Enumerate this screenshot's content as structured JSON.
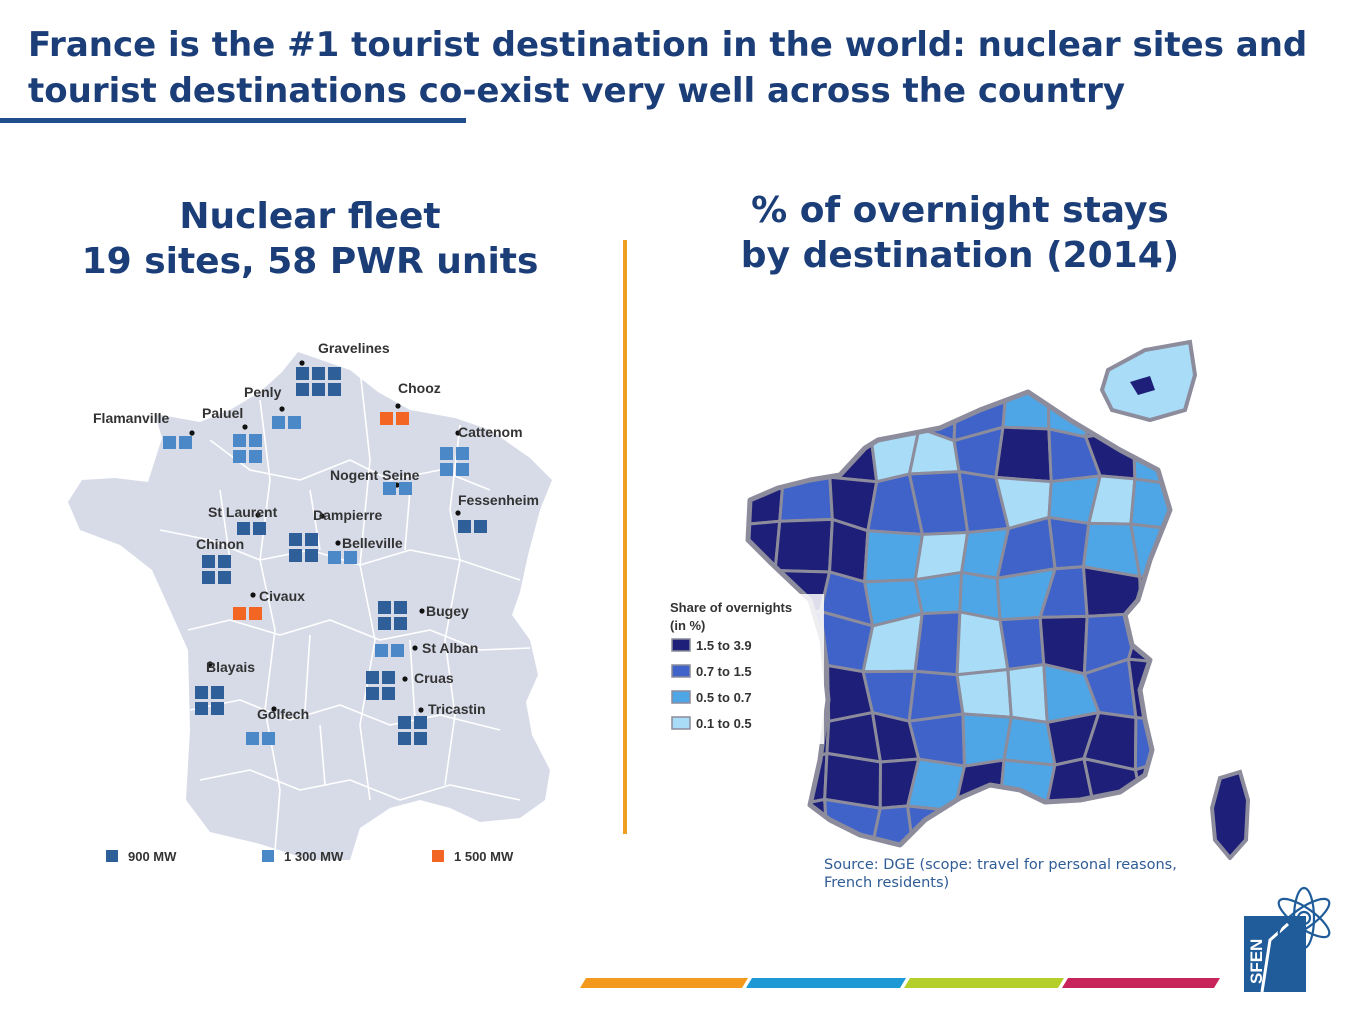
{
  "slide": {
    "title_line1": "France is the #1 tourist destination in the world: nuclear sites and",
    "title_line2": "tourist destinations co-exist very well across the country"
  },
  "left_panel": {
    "heading_line1": "Nuclear fleet",
    "heading_line2": "19 sites,  58 PWR units",
    "sites": [
      {
        "name": "Gravelines",
        "units": 6,
        "type": "900 MW"
      },
      {
        "name": "Penly",
        "units": 2,
        "type": "1 300 MW"
      },
      {
        "name": "Chooz",
        "units": 2,
        "type": "1 500 MW"
      },
      {
        "name": "Flamanville",
        "units": 2,
        "type": "1 300 MW"
      },
      {
        "name": "Paluel",
        "units": 4,
        "type": "1 300 MW"
      },
      {
        "name": "Cattenom",
        "units": 4,
        "type": "1 300 MW"
      },
      {
        "name": "Nogent Seine",
        "units": 2,
        "type": "1 300 MW"
      },
      {
        "name": "Fessenheim",
        "units": 2,
        "type": "900 MW"
      },
      {
        "name": "St Laurent",
        "units": 2,
        "type": "900 MW"
      },
      {
        "name": "Dampierre",
        "units": 4,
        "type": "900 MW"
      },
      {
        "name": "Belleville",
        "units": 2,
        "type": "1 300 MW"
      },
      {
        "name": "Chinon",
        "units": 4,
        "type": "900 MW"
      },
      {
        "name": "Civaux",
        "units": 2,
        "type": "1 500 MW"
      },
      {
        "name": "Bugey",
        "units": 4,
        "type": "900 MW"
      },
      {
        "name": "St Alban",
        "units": 2,
        "type": "1 300 MW"
      },
      {
        "name": "Blayais",
        "units": 4,
        "type": "900 MW"
      },
      {
        "name": "Cruas",
        "units": 4,
        "type": "900 MW"
      },
      {
        "name": "Golfech",
        "units": 2,
        "type": "1 300 MW"
      },
      {
        "name": "Tricastin",
        "units": 4,
        "type": "900 MW"
      }
    ],
    "legend": [
      {
        "label": "900 MW",
        "color": "#2f5f98"
      },
      {
        "label": "1 300 MW",
        "color": "#4a88c8"
      },
      {
        "label": "1 500 MW",
        "color": "#f26522"
      }
    ],
    "colors": {
      "land": "#d7dbe8",
      "border": "#ffffff"
    }
  },
  "right_panel": {
    "heading_line1": "% of overnight stays",
    "heading_line2": "by destination (2014)",
    "legend_title_line1": "Share of overnights",
    "legend_title_line2": "(in %)",
    "legend": [
      {
        "label": "1.5 to 3.9",
        "color": "#1e1f78"
      },
      {
        "label": "0.7 to 1.5",
        "color": "#3f63c8"
      },
      {
        "label": "0.5 to 0.7",
        "color": "#4fa6e6"
      },
      {
        "label": "0.1 to 0.5",
        "color": "#a9dcf6"
      }
    ],
    "colors": {
      "border": "#8c8c9c"
    },
    "source": "Source: DGE (scope: travel for personal reasons, French residents)"
  },
  "footer": {
    "bar_colors": [
      "#f39a1e",
      "#1d9ad6",
      "#b5cf2a",
      "#c8245c"
    ],
    "logo_text": "SFEN",
    "logo_color": "#1f5c99"
  }
}
